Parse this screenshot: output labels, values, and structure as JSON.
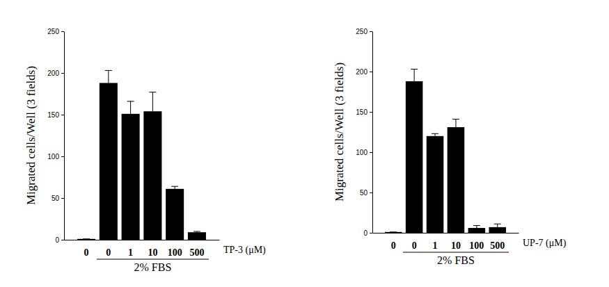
{
  "chart_data": [
    {
      "type": "bar",
      "y_label": "Migrated cells/Well (3 fields)",
      "x_label": "TP-3 (μM)",
      "categories": [
        "0",
        "0",
        "1",
        "10",
        "100",
        "500"
      ],
      "values": [
        1,
        188,
        151,
        154,
        61,
        9
      ],
      "errors": [
        0,
        15,
        15,
        23,
        3,
        1
      ],
      "annotations": [
        "2% FBS"
      ],
      "color": "#000000",
      "ylim": [
        0,
        250
      ],
      "yticks": [
        0,
        50,
        100,
        150,
        200,
        250
      ]
    },
    {
      "type": "bar",
      "y_label": "Migrated cells/Well (3 fields)",
      "x_label": "UP-7 (μM)",
      "categories": [
        "0",
        "0",
        "1",
        "10",
        "100",
        "500"
      ],
      "values": [
        1,
        188,
        120,
        131,
        6,
        7
      ],
      "errors": [
        0,
        15,
        3,
        10,
        3,
        4
      ],
      "annotations": [
        "2% FBS"
      ],
      "color": "#000000",
      "ylim": [
        0,
        250
      ],
      "yticks": [
        0,
        50,
        100,
        150,
        200,
        250
      ]
    }
  ]
}
